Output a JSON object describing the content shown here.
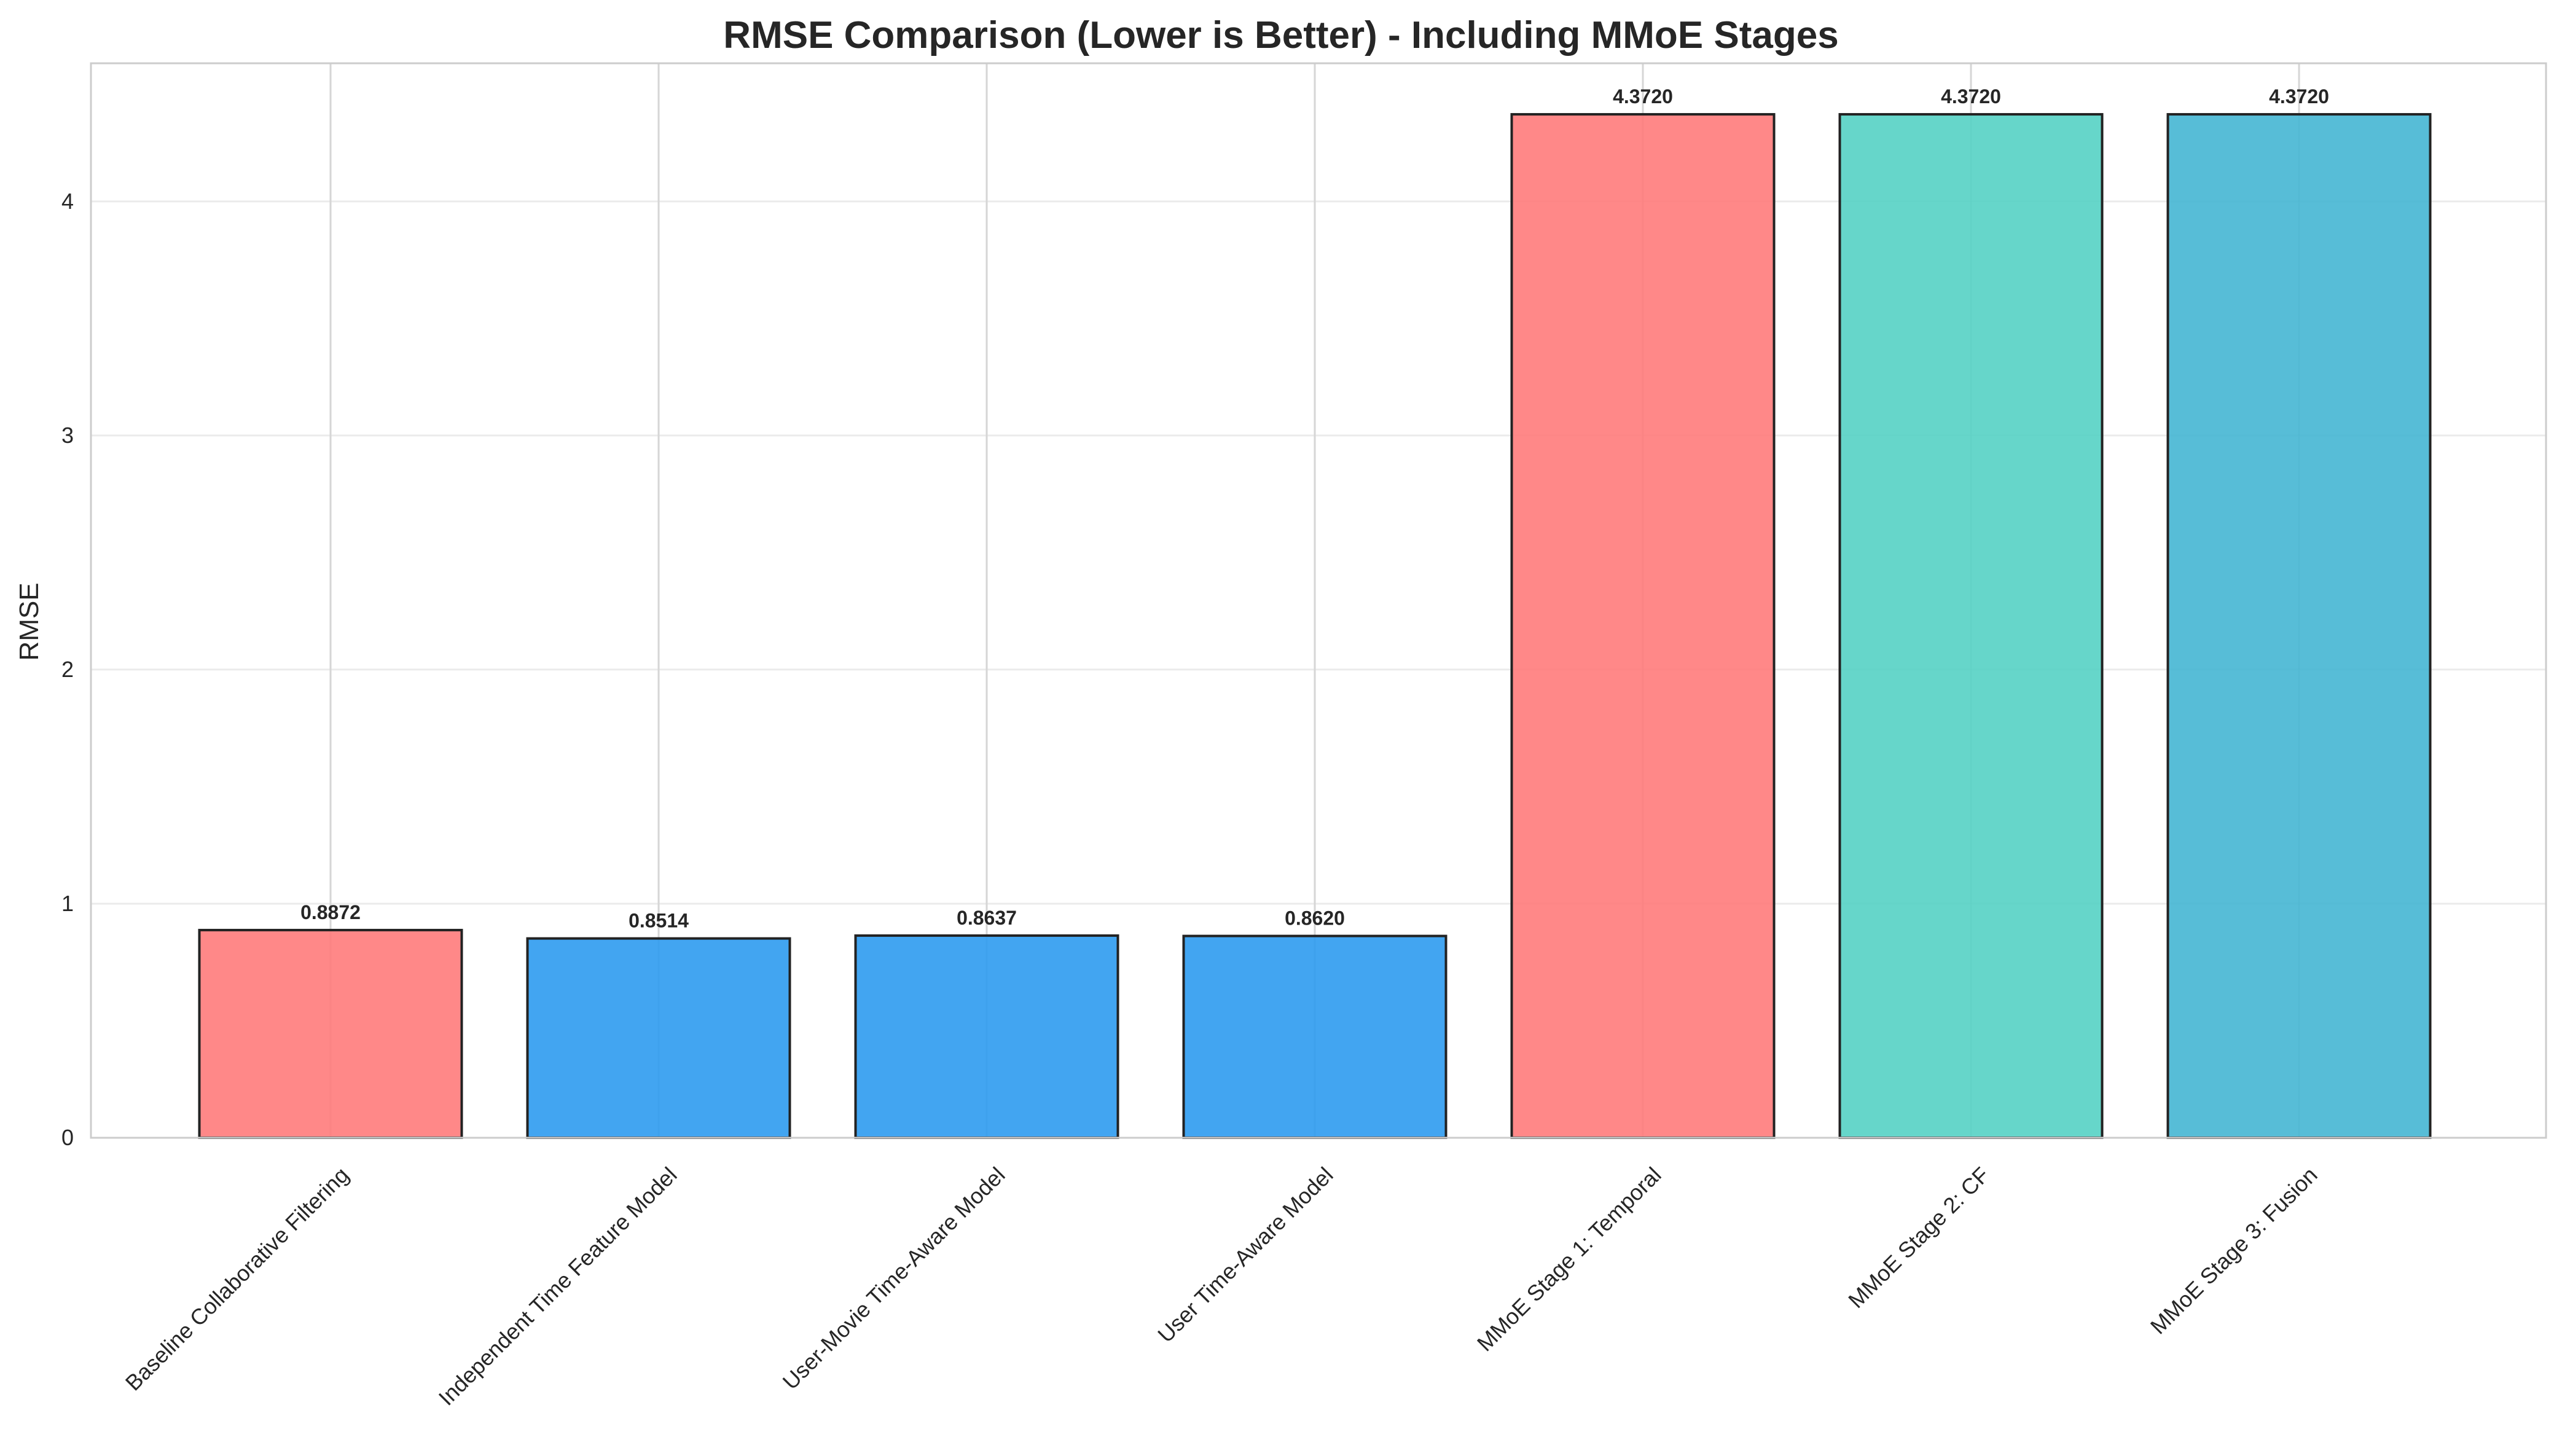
{
  "chart_data": {
    "type": "bar",
    "title": "RMSE Comparison (Lower is Better) - Including MMoE Stages",
    "xlabel": "",
    "ylabel": "RMSE",
    "ylim": [
      0,
      4.59
    ],
    "yticks": [
      0,
      1,
      2,
      3,
      4
    ],
    "grid": true,
    "categories": [
      "Baseline Collaborative Filtering",
      "Independent Time Feature Model",
      "User-Movie Time-Aware Model",
      "User Time-Aware Model",
      "MMoE Stage 1: Temporal",
      "MMoE Stage 2: CF",
      "MMoE Stage 3: Fusion"
    ],
    "values": [
      0.8872,
      0.8514,
      0.8637,
      0.862,
      4.372,
      4.372,
      4.372
    ],
    "value_labels": [
      "0.8872",
      "0.8514",
      "0.8637",
      "0.8620",
      "4.3720",
      "4.3720",
      "4.3720"
    ],
    "colors": [
      "#FF7B7B",
      "#2E9BF0",
      "#2E9BF0",
      "#2E9BF0",
      "#FF7B7B",
      "#55D1C4",
      "#45B6D3"
    ],
    "edge_color": "#222222"
  }
}
